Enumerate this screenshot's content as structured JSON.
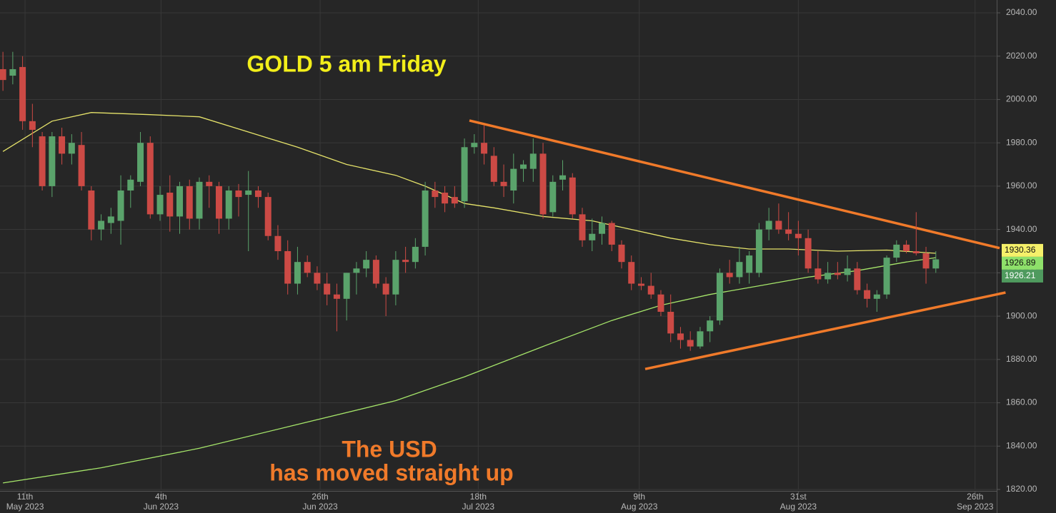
{
  "chart_data": {
    "type": "candlestick",
    "title": "GOLD 5 am Friday",
    "annotations": [
      "The USD",
      "has moved straight up"
    ],
    "up_color": "#5aa36b",
    "down_color": "#cc4a45",
    "ohlc": [
      [
        2014,
        2022,
        2004,
        2009
      ],
      [
        2011,
        2022,
        2007,
        2014
      ],
      [
        2015,
        2020,
        1986,
        1990
      ],
      [
        1990,
        1998,
        1978,
        1986
      ],
      [
        1983,
        1985,
        1958,
        1960
      ],
      [
        1960,
        1985,
        1955,
        1983
      ],
      [
        1983,
        1987,
        1970,
        1975
      ],
      [
        1975,
        1984,
        1970,
        1980
      ],
      [
        1979,
        1985,
        1958,
        1960
      ],
      [
        1958,
        1960,
        1935,
        1940
      ],
      [
        1940,
        1947,
        1935,
        1944
      ],
      [
        1943,
        1950,
        1938,
        1946
      ],
      [
        1944,
        1965,
        1933,
        1958
      ],
      [
        1958,
        1965,
        1950,
        1963
      ],
      [
        1962,
        1985,
        1960,
        1980
      ],
      [
        1980,
        1983,
        1945,
        1947
      ],
      [
        1947,
        1960,
        1944,
        1956
      ],
      [
        1957,
        1965,
        1939,
        1946
      ],
      [
        1946,
        1962,
        1938,
        1960
      ],
      [
        1960,
        1963,
        1940,
        1945
      ],
      [
        1945,
        1964,
        1940,
        1962
      ],
      [
        1962,
        1965,
        1950,
        1960
      ],
      [
        1960,
        1962,
        1938,
        1945
      ],
      [
        1945,
        1960,
        1940,
        1958
      ],
      [
        1958,
        1961,
        1946,
        1955
      ],
      [
        1956,
        1967,
        1930,
        1958
      ],
      [
        1958,
        1960,
        1950,
        1955
      ],
      [
        1955,
        1957,
        1935,
        1937
      ],
      [
        1937,
        1942,
        1926,
        1930
      ],
      [
        1930,
        1935,
        1910,
        1915
      ],
      [
        1915,
        1932,
        1910,
        1925
      ],
      [
        1925,
        1928,
        1918,
        1920
      ],
      [
        1920,
        1923,
        1912,
        1915
      ],
      [
        1915,
        1920,
        1905,
        1910
      ],
      [
        1910,
        1915,
        1893,
        1908
      ],
      [
        1908,
        1920,
        1898,
        1920
      ],
      [
        1920,
        1925,
        1910,
        1922
      ],
      [
        1922,
        1930,
        1918,
        1926
      ],
      [
        1926,
        1928,
        1913,
        1915
      ],
      [
        1915,
        1918,
        1900,
        1910
      ],
      [
        1910,
        1930,
        1905,
        1926
      ],
      [
        1926,
        1932,
        1920,
        1925
      ],
      [
        1925,
        1936,
        1922,
        1932
      ],
      [
        1932,
        1962,
        1928,
        1958
      ],
      [
        1958,
        1962,
        1950,
        1955
      ],
      [
        1957,
        1960,
        1948,
        1952
      ],
      [
        1955,
        1960,
        1950,
        1952
      ],
      [
        1953,
        1982,
        1950,
        1978
      ],
      [
        1978,
        1984,
        1975,
        1980
      ],
      [
        1980,
        1988,
        1970,
        1975
      ],
      [
        1974,
        1978,
        1960,
        1962
      ],
      [
        1962,
        1970,
        1955,
        1960
      ],
      [
        1958,
        1975,
        1952,
        1968
      ],
      [
        1968,
        1972,
        1962,
        1970
      ],
      [
        1968,
        1982,
        1962,
        1975
      ],
      [
        1975,
        1980,
        1945,
        1947
      ],
      [
        1948,
        1965,
        1946,
        1962
      ],
      [
        1963,
        1972,
        1958,
        1965
      ],
      [
        1964,
        1966,
        1945,
        1947
      ],
      [
        1947,
        1950,
        1932,
        1935
      ],
      [
        1935,
        1945,
        1930,
        1938
      ],
      [
        1938,
        1946,
        1933,
        1943
      ],
      [
        1943,
        1944,
        1930,
        1933
      ],
      [
        1933,
        1935,
        1922,
        1925
      ],
      [
        1925,
        1928,
        1912,
        1915
      ],
      [
        1915,
        1918,
        1912,
        1914
      ],
      [
        1914,
        1920,
        1908,
        1910
      ],
      [
        1910,
        1912,
        1900,
        1902
      ],
      [
        1902,
        1910,
        1888,
        1892
      ],
      [
        1892,
        1895,
        1885,
        1889
      ],
      [
        1889,
        1893,
        1884,
        1886
      ],
      [
        1886,
        1895,
        1885,
        1893
      ],
      [
        1893,
        1900,
        1888,
        1898
      ],
      [
        1898,
        1922,
        1896,
        1920
      ],
      [
        1920,
        1926,
        1915,
        1918
      ],
      [
        1918,
        1932,
        1915,
        1925
      ],
      [
        1920,
        1930,
        1915,
        1928
      ],
      [
        1920,
        1943,
        1918,
        1940
      ],
      [
        1940,
        1950,
        1935,
        1944
      ],
      [
        1944,
        1952,
        1938,
        1940
      ],
      [
        1940,
        1948,
        1935,
        1938
      ],
      [
        1938,
        1944,
        1928,
        1936
      ],
      [
        1936,
        1940,
        1920,
        1922
      ],
      [
        1922,
        1930,
        1915,
        1917
      ],
      [
        1917,
        1925,
        1915,
        1920
      ],
      [
        1920,
        1925,
        1917,
        1919
      ],
      [
        1919,
        1928,
        1916,
        1922
      ],
      [
        1922,
        1925,
        1910,
        1912
      ],
      [
        1912,
        1915,
        1904,
        1908
      ],
      [
        1908,
        1912,
        1902,
        1910
      ],
      [
        1910,
        1928,
        1908,
        1927
      ],
      [
        1927,
        1935,
        1925,
        1933
      ],
      [
        1933,
        1935,
        1929,
        1930
      ],
      [
        1930,
        1948,
        1928,
        1929
      ],
      [
        1929,
        1932,
        1915,
        1922
      ],
      [
        1922,
        1930,
        1920,
        1926.21
      ]
    ],
    "ma_lines": [
      {
        "color": "#e6e36a",
        "x": [
          0,
          5,
          9,
          15,
          20,
          25,
          30,
          35,
          40,
          43,
          47,
          50,
          55,
          60,
          64,
          68,
          72,
          76,
          80,
          85,
          90,
          95
        ],
        "values": [
          1976,
          1990,
          1994,
          1993,
          1992,
          1985,
          1978,
          1970,
          1965,
          1960,
          1952,
          1950,
          1946,
          1944,
          1940,
          1936,
          1933,
          1931,
          1931,
          1930,
          1930.5,
          1929
        ]
      },
      {
        "color": "#a6e66a",
        "x": [
          0,
          10,
          20,
          30,
          40,
          47,
          55,
          62,
          67,
          72,
          77,
          82,
          87,
          92,
          95
        ],
        "values": [
          1823,
          1830,
          1839,
          1850,
          1861,
          1872,
          1886,
          1898,
          1905,
          1910,
          1914,
          1918,
          1921,
          1925,
          1927
        ]
      }
    ],
    "trendlines": [
      {
        "color": "#f07a2a",
        "x": [
          47.5,
          101.5
        ],
        "values": [
          1990.3,
          1931.4
        ]
      },
      {
        "color": "#f07a2a",
        "x": [
          65.4,
          102.1
        ],
        "values": [
          1875.6,
          1910.9
        ]
      }
    ],
    "price_labels": [
      {
        "value": 1930.36,
        "color": "#f5f06a"
      },
      {
        "value": 1926.89,
        "color": "#8ee06a"
      },
      {
        "value": 1926.21,
        "color": "#4f9a5e"
      }
    ],
    "xlim": [
      -0.3,
      101.2
    ],
    "ylim": [
      1820,
      2040
    ],
    "yticks": [
      {
        "value": 1820,
        "label": "1820.00"
      },
      {
        "value": 1840,
        "label": "1840.00"
      },
      {
        "value": 1860,
        "label": "1860.00"
      },
      {
        "value": 1880,
        "label": "1880.00"
      },
      {
        "value": 1900,
        "label": "1900.00"
      },
      {
        "value": 1920,
        "label": "1920.00"
      },
      {
        "value": 1940,
        "label": "1940.00"
      },
      {
        "value": 1960,
        "label": "1960.00"
      },
      {
        "value": 1980,
        "label": "1980.00"
      },
      {
        "value": 2000,
        "label": "2000.00"
      },
      {
        "value": 2020,
        "label": "2020.00"
      },
      {
        "value": 2040,
        "label": "2040.00"
      }
    ],
    "xticks": [
      {
        "value": 2.25,
        "label": "11th"
      },
      {
        "value": 16.1,
        "label": "4th"
      },
      {
        "value": 32.3,
        "label": "26th"
      },
      {
        "value": 48.4,
        "label": "18th"
      },
      {
        "value": 64.8,
        "label": "9th"
      },
      {
        "value": 81,
        "label": "31st"
      },
      {
        "value": 99,
        "label": "26th"
      }
    ],
    "xtick_months": [
      "May 2023",
      "Jun 2023",
      "Jun 2023",
      "Jul 2023",
      "Aug 2023",
      "Aug 2023",
      "Sep 2023"
    ],
    "grid": true
  }
}
